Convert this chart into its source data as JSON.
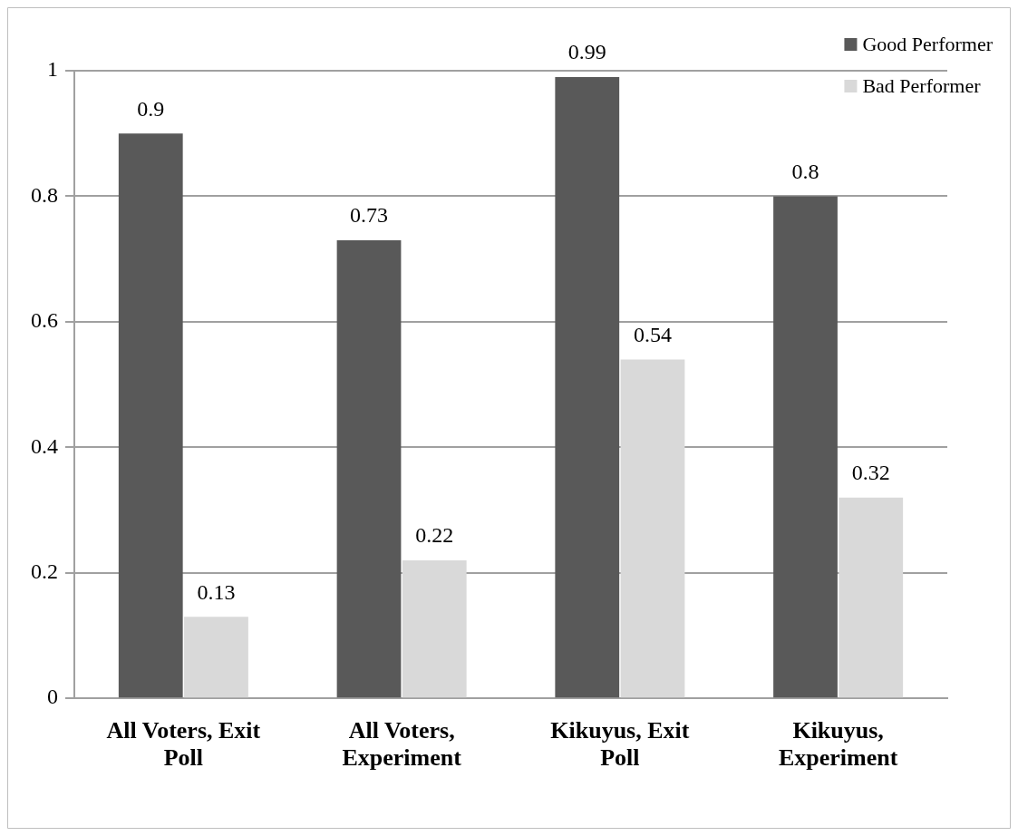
{
  "chart_data": {
    "type": "bar",
    "categories": [
      "All Voters, Exit Poll",
      "All Voters, Experiment",
      "Kikuyus, Exit Poll",
      "Kikuyus, Experiment"
    ],
    "series": [
      {
        "name": "Good Performer",
        "color": "#595959",
        "values": [
          0.9,
          0.73,
          0.99,
          0.8
        ]
      },
      {
        "name": "Bad Performer",
        "color": "#d9d9d9",
        "values": [
          0.13,
          0.22,
          0.54,
          0.32
        ]
      }
    ],
    "ylim": [
      0,
      1
    ],
    "yticks": [
      0,
      0.2,
      0.4,
      0.6,
      0.8,
      1
    ],
    "grid": "y",
    "legend": "top right",
    "data_labels": true
  }
}
